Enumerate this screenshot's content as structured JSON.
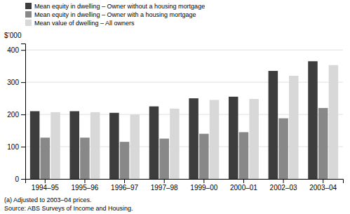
{
  "chart_data": {
    "type": "bar",
    "categories": [
      "1994–95",
      "1995–96",
      "1996–97",
      "1997–98",
      "1999–00",
      "2000–01",
      "2002–03",
      "2003–04"
    ],
    "series": [
      {
        "name": "Mean equity in dwelling – Owner without a housing mortgage",
        "color": "#3d3d3d",
        "values": [
          210,
          210,
          205,
          225,
          250,
          255,
          335,
          365
        ]
      },
      {
        "name": "Mean equity in dwelling – Owner with a housing mortgage",
        "color": "#888888",
        "values": [
          128,
          128,
          115,
          125,
          140,
          145,
          188,
          220
        ]
      },
      {
        "name": "Mean value of dwelling – All owners",
        "color": "#d8d8d8",
        "values": [
          207,
          207,
          200,
          218,
          245,
          248,
          320,
          353
        ]
      }
    ],
    "ylabel": "$’000",
    "ylim": [
      0,
      420
    ],
    "yticks": [
      0,
      100,
      200,
      300,
      400
    ],
    "grid": true,
    "legend": "upper left",
    "annotations": [
      "(a) Adjusted to 2003–04 prices.",
      "Source: ABS Surveys of Income and Housing."
    ]
  }
}
